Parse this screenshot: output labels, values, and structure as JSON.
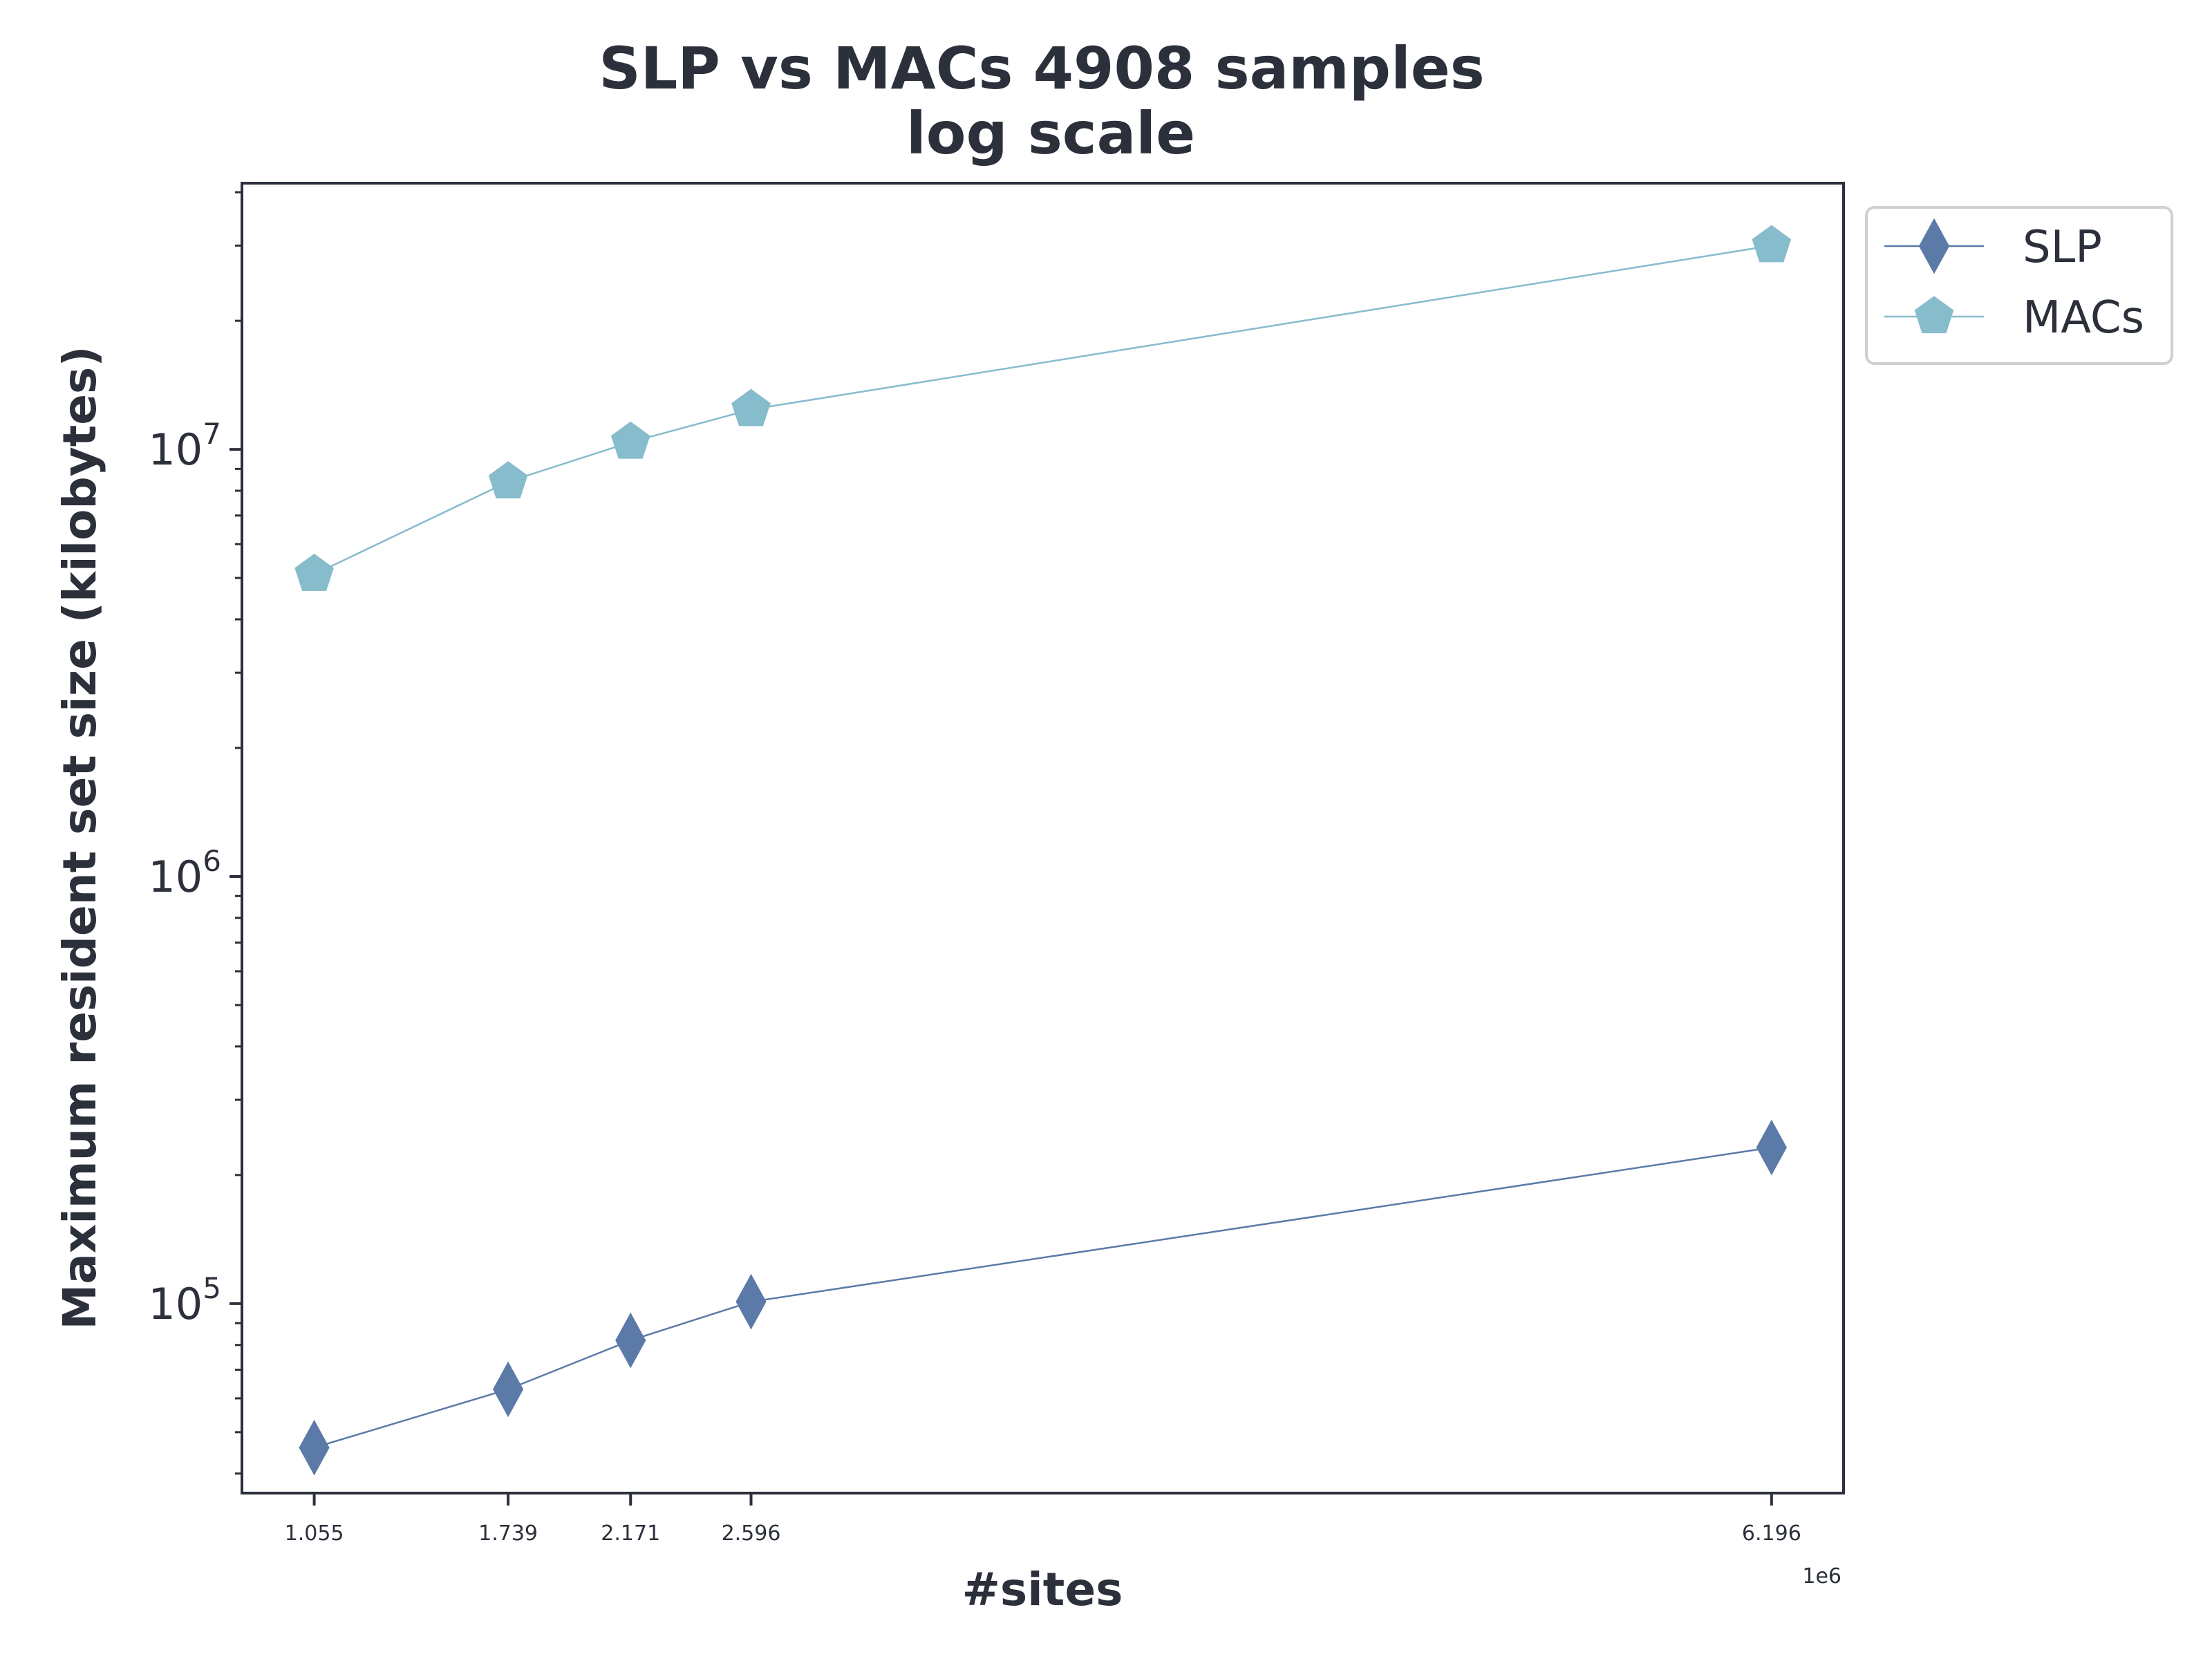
{
  "chart_data": {
    "type": "line",
    "title_lines": [
      "SLP vs MACs 4908 samples",
      "log scale"
    ],
    "xlabel": "#sites",
    "ylabel": "Maximum resident set size (kilobytes)",
    "x_scale": "linear",
    "y_scale": "log",
    "x_offset_label": "1e6",
    "xlim": [
      0.8,
      6.45
    ],
    "ylim": [
      36000,
      42000000
    ],
    "x": [
      1.055,
      1.739,
      2.171,
      2.596,
      6.196
    ],
    "x_tick_labels": [
      "1.055",
      "1.739",
      "2.171",
      "2.596",
      "6.196"
    ],
    "y_ticks": [
      {
        "value": 100000,
        "base": "10",
        "exp": "5"
      },
      {
        "value": 1000000,
        "base": "10",
        "exp": "6"
      },
      {
        "value": 10000000,
        "base": "10",
        "exp": "7"
      }
    ],
    "legend_position": "outside upper right",
    "series": [
      {
        "name": "SLP",
        "marker": "thin_diamond",
        "color": "#5b7aa8",
        "values": [
          46000,
          63000,
          82000,
          101000,
          232000
        ]
      },
      {
        "name": "MACs",
        "marker": "pentagon",
        "color": "#86bccc",
        "values": [
          5100000,
          8400000,
          10400000,
          12400000,
          30000000
        ]
      }
    ],
    "colors": {
      "axis": "#2b303b",
      "text": "#2b303b",
      "legend_border": "#d0d0d0"
    }
  }
}
